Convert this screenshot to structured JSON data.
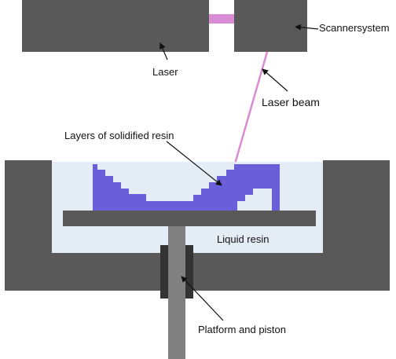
{
  "labels": {
    "laser": "Laser",
    "scanner": "Scannersystem",
    "laser_beam": "Laser beam",
    "layers": "Layers of solidified resin",
    "liquid_resin": "Liquid resin",
    "platform": "Platform and piston"
  },
  "colors": {
    "body": "#595959",
    "resin_liquid": "#e4ecf5",
    "resin_solid": "#6b5fd9",
    "beam": "#d98bd4",
    "piston": "#808080",
    "seal": "#333333",
    "text": "#111111"
  }
}
